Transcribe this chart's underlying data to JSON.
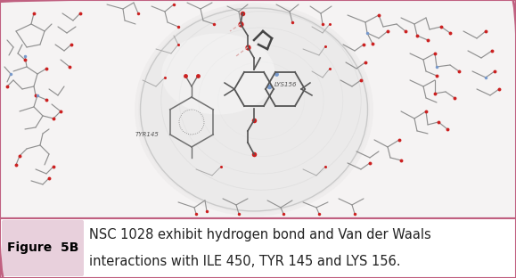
{
  "figure_label": "Figure  5B",
  "caption_line1": "NSC 1028 exhibit hydrogen bond and Van der Waals",
  "caption_line2": "interactions with ILE 450, TYR 145 and LYS 156.",
  "label_bg_color": "#e8d0dc",
  "label_text_color": "#000000",
  "border_color": "#c06080",
  "caption_text_color": "#222222",
  "bg_color": "#ffffff",
  "fig_width": 5.79,
  "fig_height": 3.12,
  "image_bg": "#f0eeee",
  "sphere_color": "#e8e8e8",
  "sphere_edge": "#cccccc",
  "stick_color": "#888888",
  "red_atom_color": "#cc2020",
  "blue_atom_color": "#7799cc",
  "label_fontsize": 10,
  "caption_fontsize": 10.5
}
